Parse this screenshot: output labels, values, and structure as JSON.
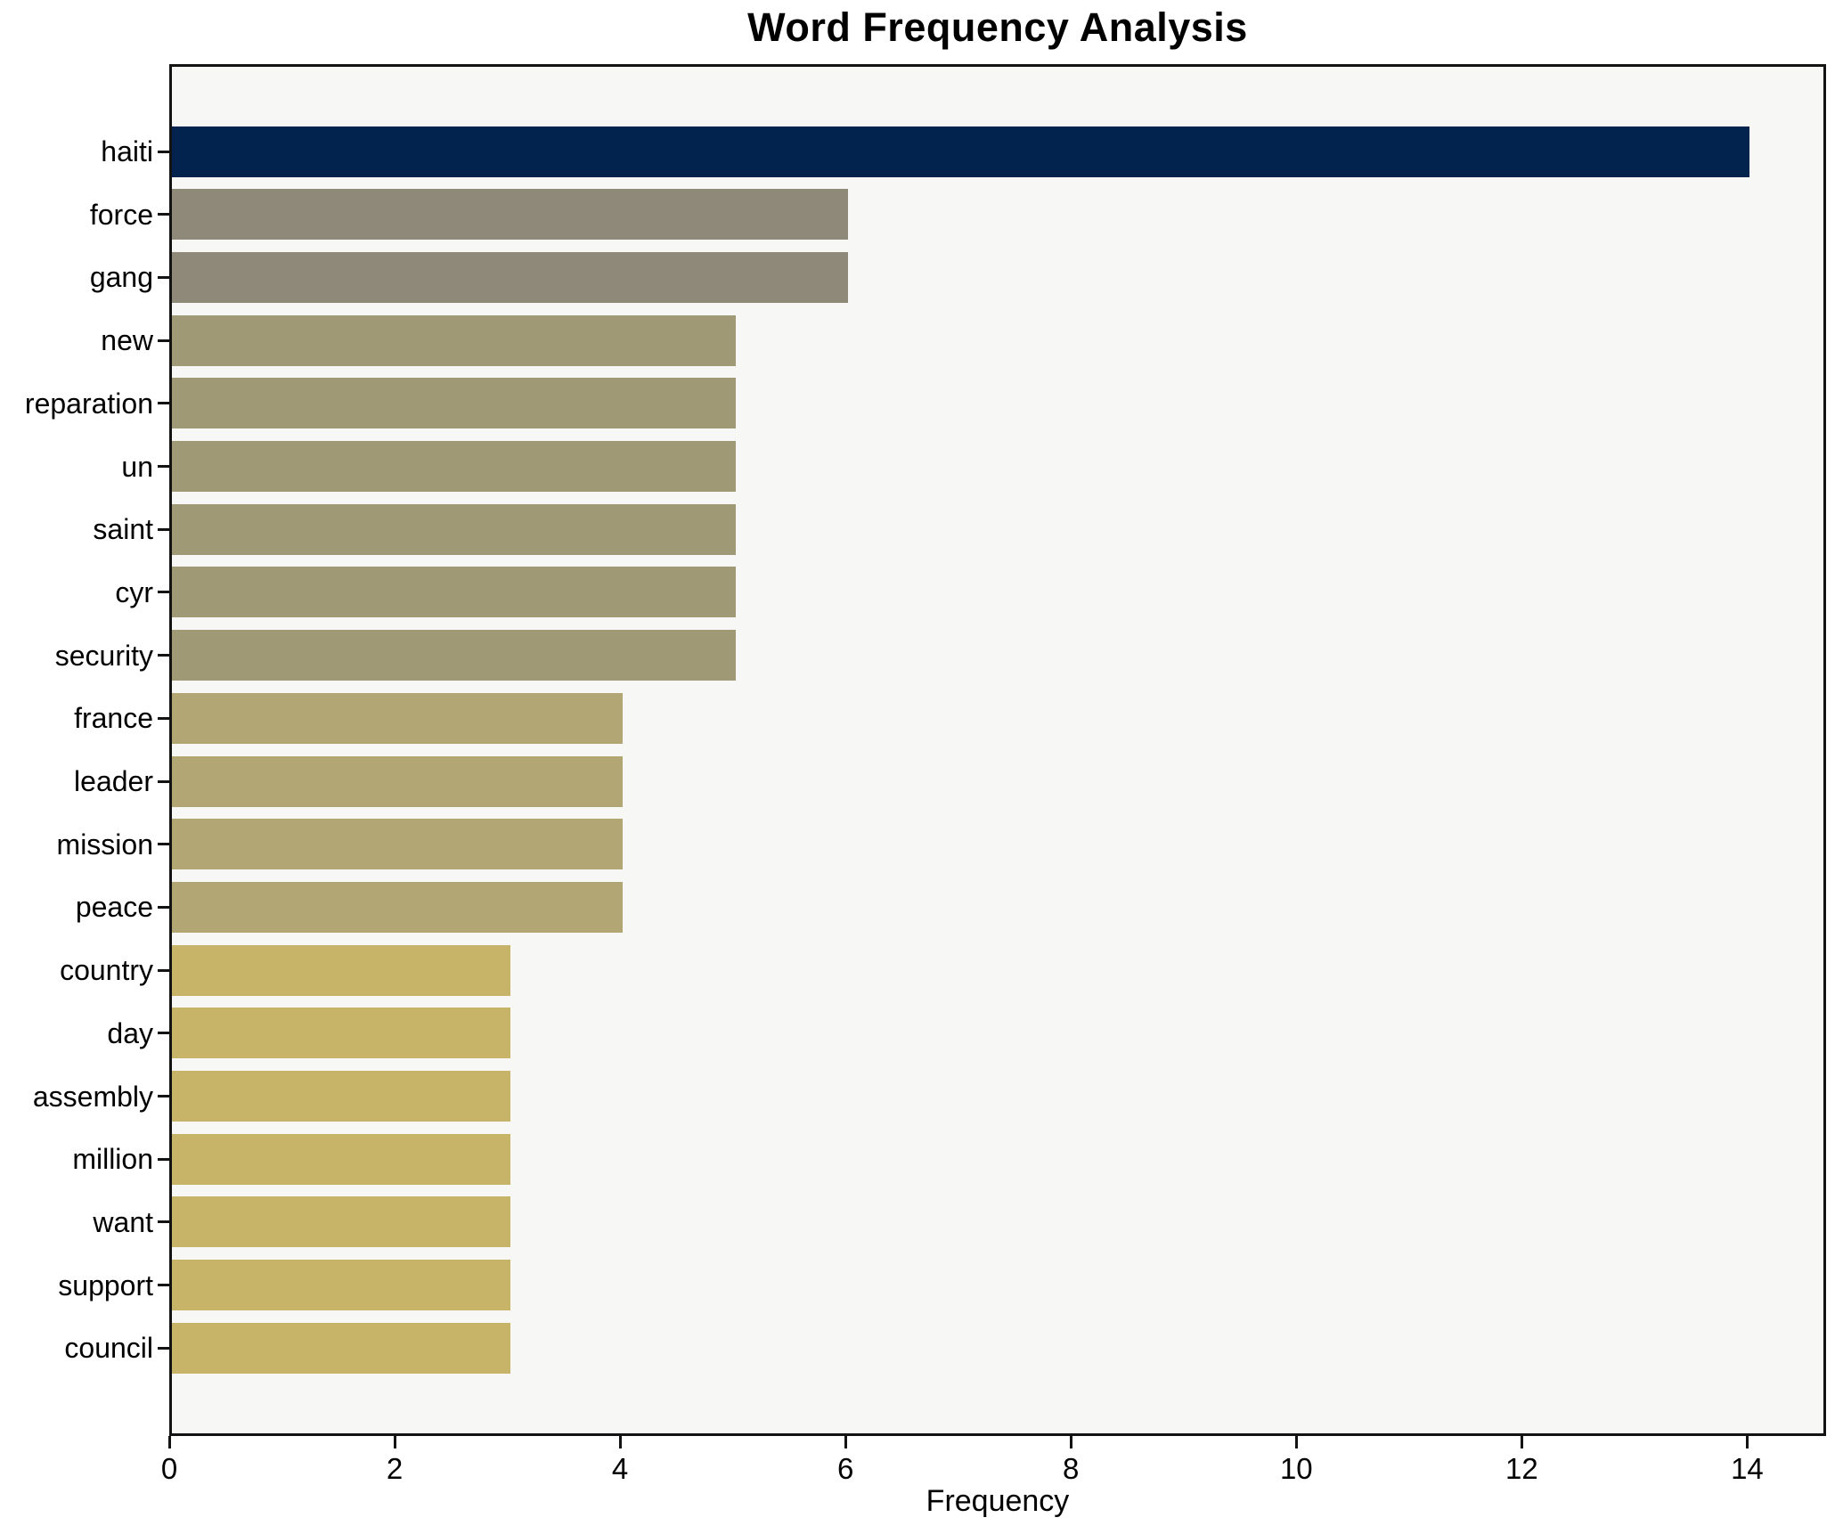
{
  "chart_data": {
    "type": "bar",
    "orientation": "horizontal",
    "title": "Word Frequency Analysis",
    "xlabel": "Frequency",
    "ylabel": "",
    "categories": [
      "haiti",
      "force",
      "gang",
      "new",
      "reparation",
      "un",
      "saint",
      "cyr",
      "security",
      "france",
      "leader",
      "mission",
      "peace",
      "country",
      "day",
      "assembly",
      "million",
      "want",
      "support",
      "council"
    ],
    "values": [
      14,
      6,
      6,
      5,
      5,
      5,
      5,
      5,
      5,
      4,
      4,
      4,
      4,
      3,
      3,
      3,
      3,
      3,
      3,
      3
    ],
    "bar_colors": [
      "#02234d",
      "#8e8978",
      "#8e8978",
      "#a09976",
      "#a09976",
      "#a09976",
      "#a09976",
      "#a09976",
      "#a09976",
      "#b1a674",
      "#b1a674",
      "#b1a674",
      "#b1a674",
      "#c7b468",
      "#c7b468",
      "#c7b468",
      "#c7b468",
      "#c7b468",
      "#c7b468",
      "#c7b468"
    ],
    "x_ticks": [
      0,
      2,
      4,
      6,
      8,
      10,
      12,
      14
    ],
    "xlim": [
      0,
      14.7
    ],
    "grid": "off",
    "legend": "none",
    "plot_background": "#f7f7f5",
    "figure_background": "#ffffff",
    "axis_color": "#131313",
    "text_color": "#000000"
  }
}
